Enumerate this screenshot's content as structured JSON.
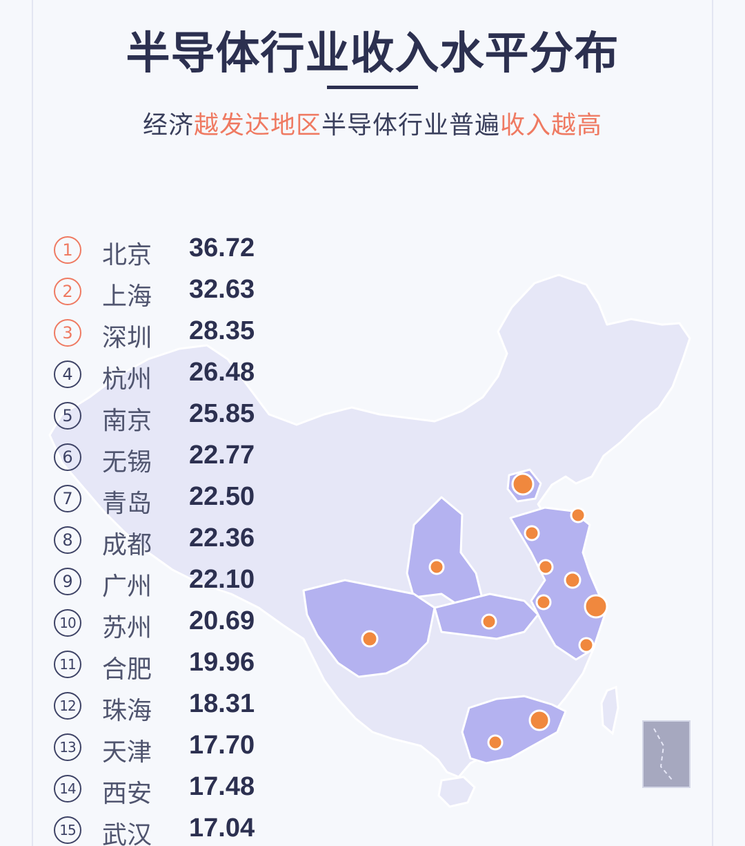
{
  "title": "半导体行业收入水平分布",
  "subtitle": {
    "p1": "经济",
    "p2": "越发达地区",
    "p3": "半导体行业普遍",
    "p4": "收入越高"
  },
  "colors": {
    "highlight": "#ef7a62",
    "dark": "#2c3050",
    "map_base": "#e6e7f7",
    "map_highlight": "#b4b2f0",
    "marker": "#f0883e"
  },
  "chart_data": {
    "type": "table",
    "title": "半导体行业收入水平分布",
    "rows": [
      {
        "rank": "1",
        "city": "北京",
        "value": "36.72"
      },
      {
        "rank": "2",
        "city": "上海",
        "value": "32.63"
      },
      {
        "rank": "3",
        "city": "深圳",
        "value": "28.35"
      },
      {
        "rank": "4",
        "city": "杭州",
        "value": "26.48"
      },
      {
        "rank": "5",
        "city": "南京",
        "value": "25.85"
      },
      {
        "rank": "6",
        "city": "无锡",
        "value": "22.77"
      },
      {
        "rank": "7",
        "city": "青岛",
        "value": "22.50"
      },
      {
        "rank": "8",
        "city": "成都",
        "value": "22.36"
      },
      {
        "rank": "9",
        "city": "广州",
        "value": "22.10"
      },
      {
        "rank": "10",
        "city": "苏州",
        "value": "20.69"
      },
      {
        "rank": "11",
        "city": "合肥",
        "value": "19.96"
      },
      {
        "rank": "12",
        "city": "珠海",
        "value": "18.31"
      },
      {
        "rank": "13",
        "city": "天津",
        "value": "17.70"
      },
      {
        "rank": "14",
        "city": "西安",
        "value": "17.48"
      },
      {
        "rank": "15",
        "city": "武汉",
        "value": "17.04"
      }
    ]
  }
}
